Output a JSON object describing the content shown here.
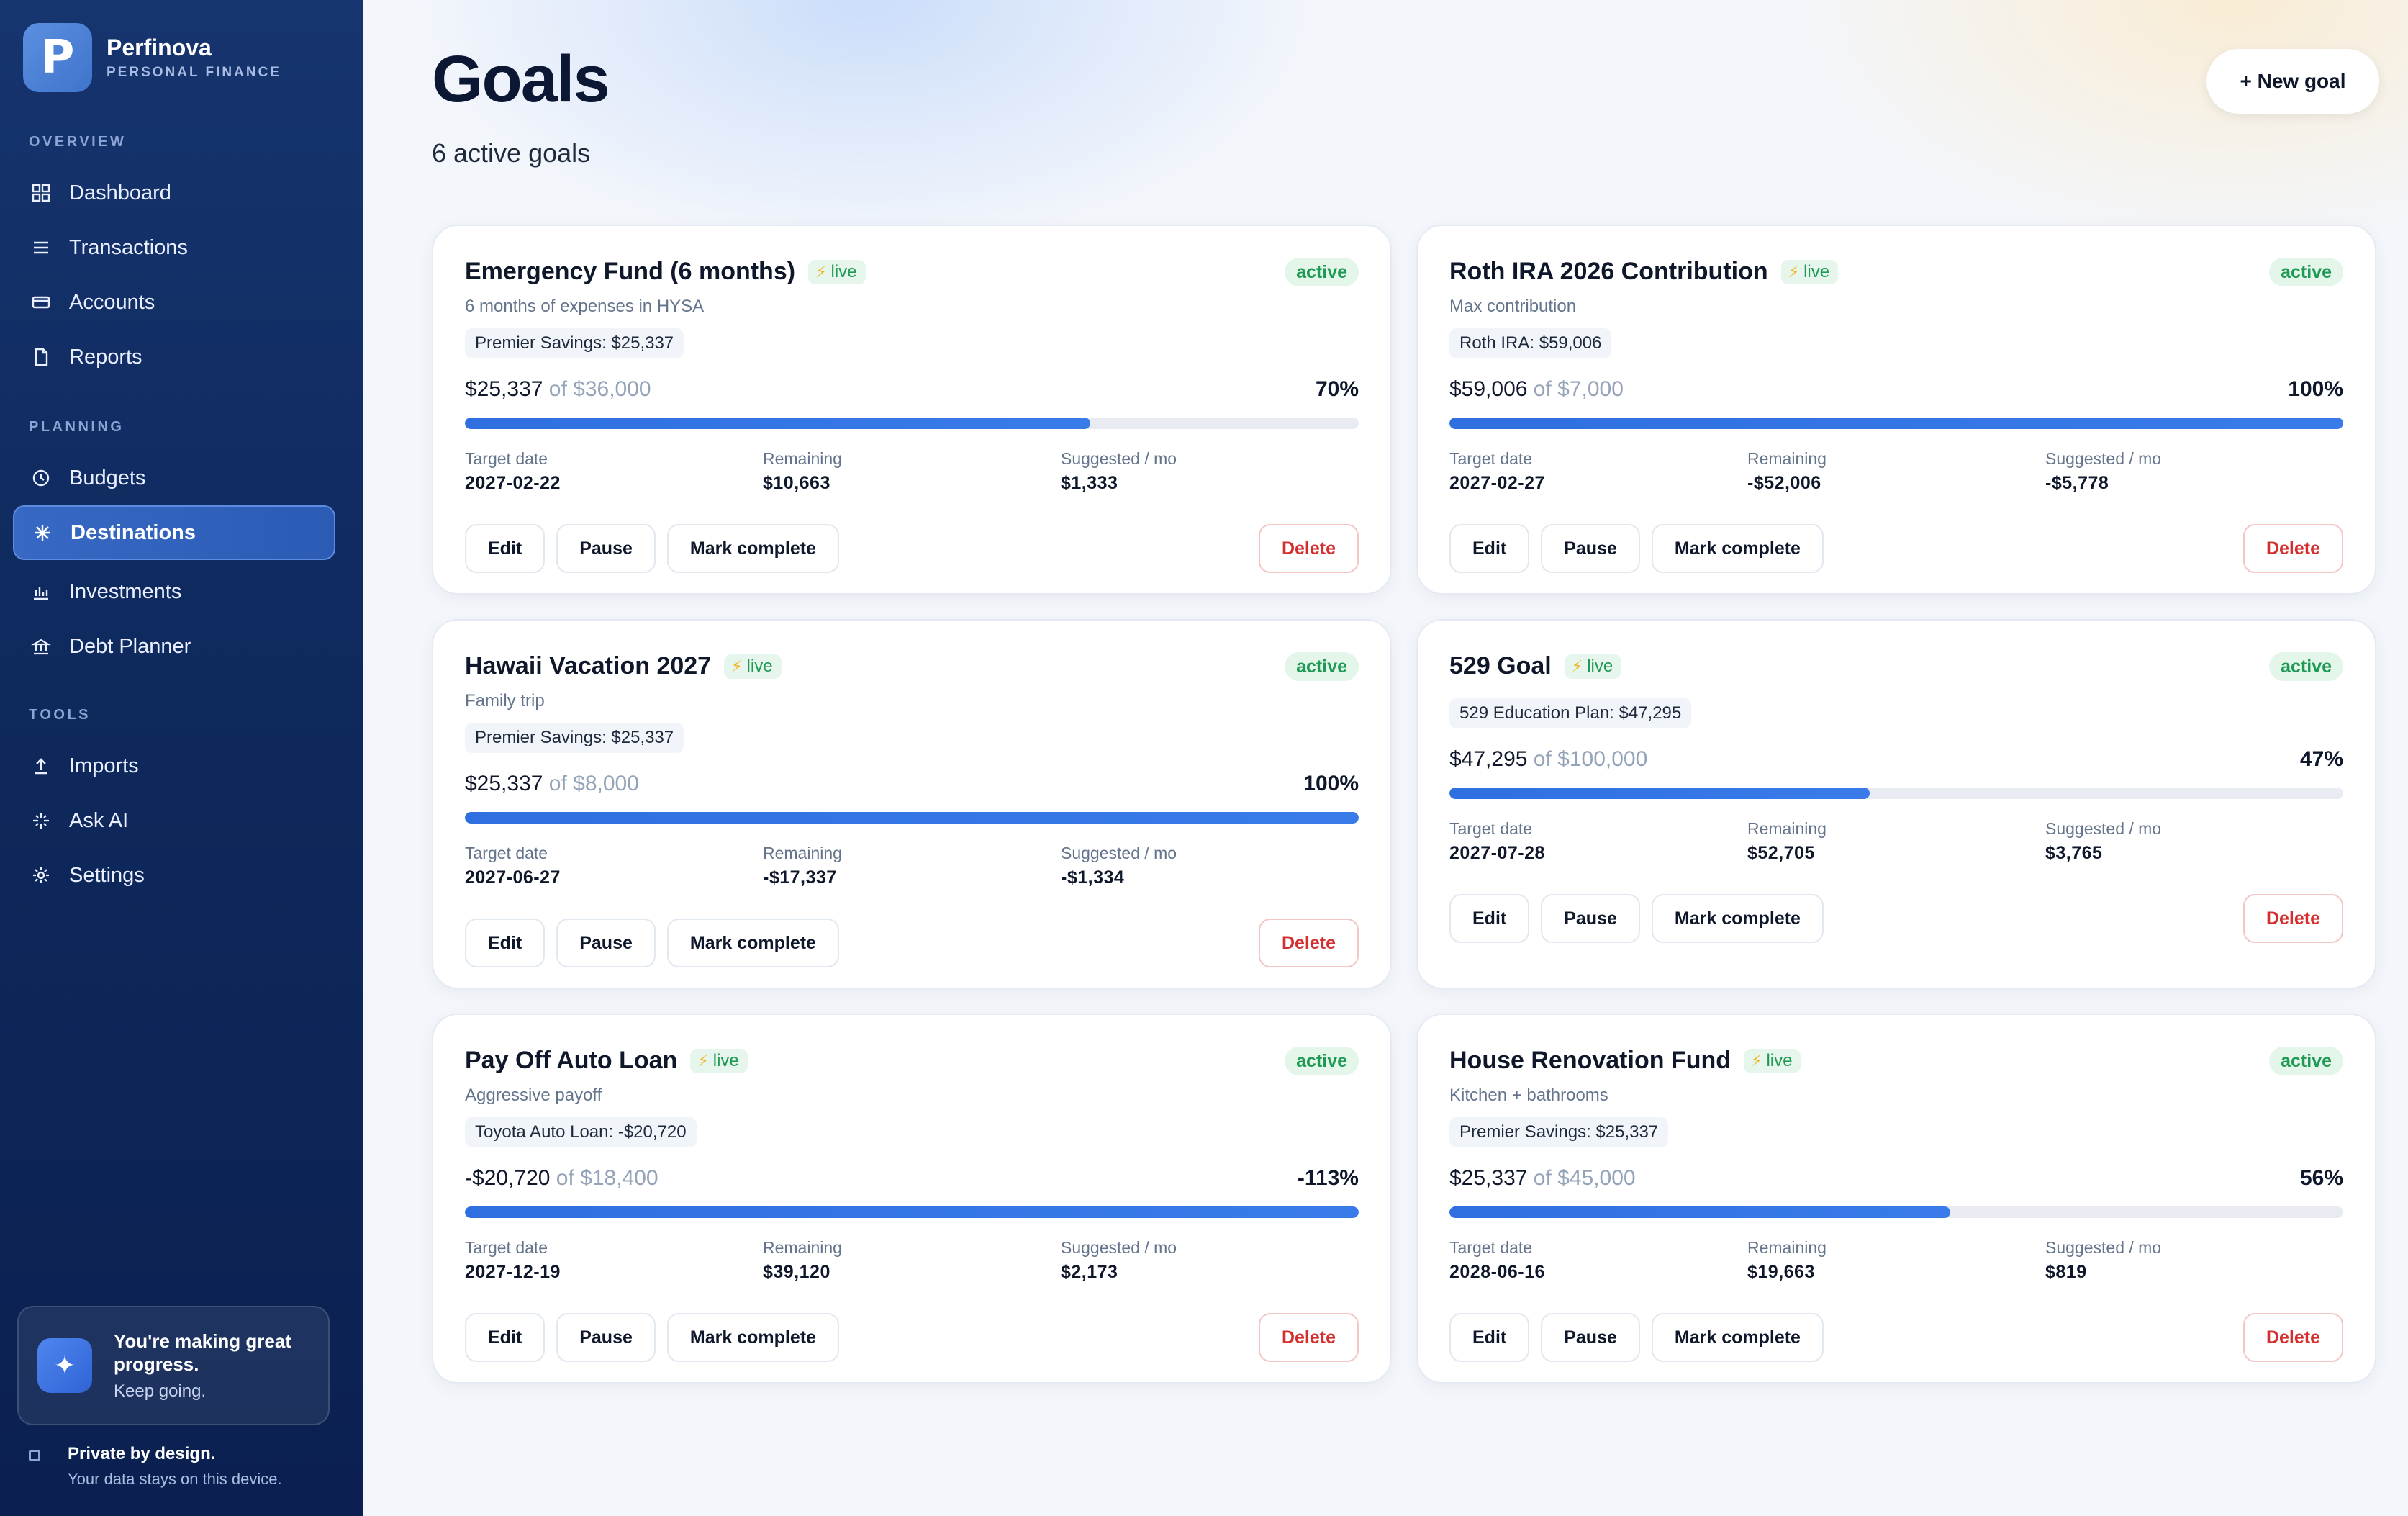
{
  "brand": {
    "name": "Perfinova",
    "subtitle": "PERSONAL FINANCE",
    "logo_letter": "P"
  },
  "sidebar": {
    "sections": {
      "overview": "OVERVIEW",
      "planning": "PLANNING",
      "tools": "TOOLS"
    },
    "items": [
      {
        "label": "Dashboard",
        "icon": "grid-icon"
      },
      {
        "label": "Transactions",
        "icon": "list-icon"
      },
      {
        "label": "Accounts",
        "icon": "card-icon"
      },
      {
        "label": "Reports",
        "icon": "document-icon"
      },
      {
        "label": "Budgets",
        "icon": "clock-icon"
      },
      {
        "label": "Destinations",
        "icon": "asterisk-icon",
        "active": true
      },
      {
        "label": "Investments",
        "icon": "bar-chart-icon"
      },
      {
        "label": "Debt Planner",
        "icon": "bank-icon"
      },
      {
        "label": "Imports",
        "icon": "upload-icon"
      },
      {
        "label": "Ask AI",
        "icon": "sparkle-icon"
      },
      {
        "label": "Settings",
        "icon": "gear-icon"
      }
    ],
    "promo": {
      "title": "You're making great progress.",
      "subtitle": "Keep going.",
      "icon": "sparkle-icon"
    },
    "privacy": {
      "title": "Private by design.",
      "subtitle": "Your data stays on this device."
    }
  },
  "header": {
    "title": "Goals",
    "subtitle": "6 active goals",
    "new_goal_label": "+ New goal"
  },
  "labels": {
    "live": "live",
    "of": "of",
    "target_date": "Target date",
    "remaining": "Remaining",
    "suggested": "Suggested / mo",
    "edit": "Edit",
    "pause": "Pause",
    "mark_complete": "Mark complete",
    "delete": "Delete"
  },
  "colors": {
    "accent": "#2f6fe0",
    "live_green": "#1f9a55",
    "delete_red": "#d32f2f",
    "sidebar_bg": "#0f2a5e"
  },
  "goals": [
    {
      "title": "Emergency Fund (6 months)",
      "status": "active",
      "description": "6 months of expenses in HYSA",
      "account": "Premier Savings: $25,337",
      "current": "$25,337",
      "target": "$36,000",
      "percent_label": "70%",
      "progress": 0.7,
      "target_date": "2027-02-22",
      "remaining": "$10,663",
      "suggested": "$1,333"
    },
    {
      "title": "Roth IRA 2026 Contribution",
      "status": "active",
      "description": "Max contribution",
      "account": "Roth IRA: $59,006",
      "current": "$59,006",
      "target": "$7,000",
      "percent_label": "100%",
      "progress": 1.0,
      "target_date": "2027-02-27",
      "remaining": "-$52,006",
      "suggested": "-$5,778"
    },
    {
      "title": "Hawaii Vacation 2027",
      "status": "active",
      "description": "Family trip",
      "account": "Premier Savings: $25,337",
      "current": "$25,337",
      "target": "$8,000",
      "percent_label": "100%",
      "progress": 1.0,
      "target_date": "2027-06-27",
      "remaining": "-$17,337",
      "suggested": "-$1,334"
    },
    {
      "title": "529 Goal",
      "status": "active",
      "description": "",
      "account": "529 Education Plan: $47,295",
      "current": "$47,295",
      "target": "$100,000",
      "percent_label": "47%",
      "progress": 0.47,
      "target_date": "2027-07-28",
      "remaining": "$52,705",
      "suggested": "$3,765"
    },
    {
      "title": "Pay Off Auto Loan",
      "status": "active",
      "description": "Aggressive payoff",
      "account": "Toyota Auto Loan: -$20,720",
      "current": "-$20,720",
      "target": "$18,400",
      "percent_label": "-113%",
      "progress": 1.0,
      "target_date": "2027-12-19",
      "remaining": "$39,120",
      "suggested": "$2,173"
    },
    {
      "title": "House Renovation Fund",
      "status": "active",
      "description": "Kitchen + bathrooms",
      "account": "Premier Savings: $25,337",
      "current": "$25,337",
      "target": "$45,000",
      "percent_label": "56%",
      "progress": 0.56,
      "target_date": "2028-06-16",
      "remaining": "$19,663",
      "suggested": "$819"
    }
  ]
}
